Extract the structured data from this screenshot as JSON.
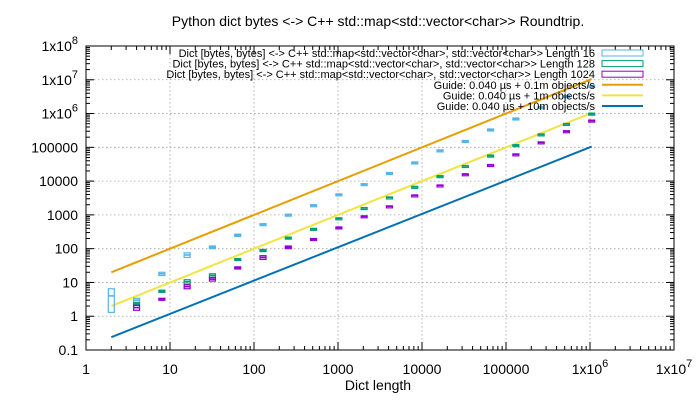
{
  "chart_data": {
    "type": "scatter",
    "title": "Python dict bytes <-> C++ std::map<std::vector<char>> Roundtrip.",
    "xlabel": "Dict length",
    "ylabel": "",
    "xscale": "log",
    "yscale": "log",
    "xlim": [
      1,
      10000000
    ],
    "ylim": [
      0.1,
      100000000
    ],
    "grid": true,
    "legend_position": "top-right",
    "x_ticks": [
      {
        "value": 1,
        "label": "1"
      },
      {
        "value": 10,
        "label": "10"
      },
      {
        "value": 100,
        "label": "100"
      },
      {
        "value": 1000,
        "label": "1000"
      },
      {
        "value": 10000,
        "label": "10000"
      },
      {
        "value": 100000,
        "label": "100000"
      },
      {
        "value": 1000000,
        "label": "1x10",
        "exp": "6"
      },
      {
        "value": 10000000,
        "label": "1x10",
        "exp": "7"
      }
    ],
    "y_ticks": [
      {
        "value": 0.1,
        "label": "0.1"
      },
      {
        "value": 1,
        "label": "1"
      },
      {
        "value": 10,
        "label": "10"
      },
      {
        "value": 100,
        "label": "100"
      },
      {
        "value": 1000,
        "label": "1000"
      },
      {
        "value": 10000,
        "label": "10000"
      },
      {
        "value": 100000,
        "label": "100000"
      },
      {
        "value": 1000000,
        "label": "1x10",
        "exp": "6"
      },
      {
        "value": 10000000,
        "label": "1x10",
        "exp": "7"
      },
      {
        "value": 100000000,
        "label": "1x10",
        "exp": "8"
      }
    ],
    "series": [
      {
        "name": "Dict [bytes, bytes] <-> C++ std::map<std::vector<char>, std::vector<char>> Length 16",
        "kind": "box",
        "color": "#56b4e9",
        "x": [
          2,
          4,
          8,
          16,
          32,
          64,
          128,
          256,
          512,
          1024,
          2048,
          4096,
          8192,
          16384,
          32768,
          65536,
          131072,
          262144,
          524288,
          1048576
        ],
        "y": [
          4,
          3,
          18,
          65,
          110,
          250,
          520,
          1000,
          1900,
          4000,
          8000,
          17000,
          35000,
          80000,
          150000,
          330000,
          700000,
          1500000,
          3200000,
          6500000
        ],
        "y_low": [
          1.3,
          2.6,
          16,
          55,
          100,
          230,
          490,
          950,
          1800,
          3800,
          7600,
          16000,
          33000,
          76000,
          140000,
          310000,
          660000,
          1400000,
          3000000,
          6200000
        ],
        "y_high": [
          6.5,
          3.4,
          20,
          75,
          120,
          270,
          550,
          1050,
          2000,
          4200,
          8400,
          18000,
          37000,
          84000,
          160000,
          350000,
          740000,
          1600000,
          3400000,
          6800000
        ]
      },
      {
        "name": "Dict [bytes, bytes] <-> C++ std::map<std::vector<char>, std::vector<char>> Length 128",
        "kind": "box",
        "color": "#009e73",
        "x": [
          4,
          8,
          16,
          32,
          64,
          128,
          256,
          512,
          1024,
          2048,
          4096,
          8192,
          16384,
          32768,
          65536,
          131072,
          262144,
          524288,
          1048576
        ],
        "y": [
          2.3,
          5.5,
          10.5,
          16,
          48,
          88,
          210,
          380,
          790,
          1600,
          3300,
          6800,
          14000,
          28000,
          57000,
          115000,
          240000,
          490000,
          990000
        ],
        "y_low": [
          2.1,
          5.1,
          9,
          14,
          45,
          82,
          200,
          360,
          760,
          1550,
          3200,
          6600,
          13500,
          27000,
          55000,
          110000,
          230000,
          470000,
          950000
        ],
        "y_high": [
          2.5,
          5.9,
          12,
          18,
          51,
          95,
          220,
          400,
          820,
          1650,
          3400,
          7000,
          14500,
          29000,
          59000,
          120000,
          250000,
          510000,
          1030000
        ]
      },
      {
        "name": "Dict [bytes, bytes] <-> C++ std::map<std::vector<char>, std::vector<char>> Length 1024",
        "kind": "box",
        "color": "#9400d3",
        "x": [
          4,
          8,
          16,
          32,
          64,
          128,
          256,
          512,
          1024,
          2048,
          4096,
          8192,
          16384,
          32768,
          65536,
          131072,
          262144,
          524288,
          1048576
        ],
        "y": [
          1.8,
          3.2,
          7.5,
          12.5,
          27,
          55,
          110,
          190,
          420,
          900,
          1800,
          3800,
          7500,
          16000,
          30000,
          62000,
          140000,
          300000,
          620000
        ],
        "y_low": [
          1.5,
          3.0,
          6.5,
          11,
          25,
          48,
          100,
          180,
          400,
          860,
          1750,
          3700,
          7300,
          15500,
          29000,
          60000,
          135000,
          290000,
          600000
        ],
        "y_high": [
          2.1,
          3.4,
          8.5,
          14,
          29,
          62,
          120,
          200,
          440,
          940,
          1850,
          3900,
          7700,
          16500,
          31000,
          64000,
          145000,
          310000,
          640000
        ]
      },
      {
        "name": "Guide: 0.040 µs + 0.1m objects/s",
        "kind": "line",
        "color": "#e69f00",
        "x": [
          2,
          1048576
        ],
        "y": [
          20,
          10485760
        ]
      },
      {
        "name": "Guide: 0.040 µs + 1m objects/s",
        "kind": "line",
        "color": "#f0e442",
        "x": [
          2,
          1048576
        ],
        "y": [
          2,
          1048576
        ]
      },
      {
        "name": "Guide: 0.040 µs + 10m objects/s",
        "kind": "line",
        "color": "#0072b2",
        "x": [
          2,
          1048576
        ],
        "y": [
          0.24,
          104858
        ]
      }
    ]
  }
}
